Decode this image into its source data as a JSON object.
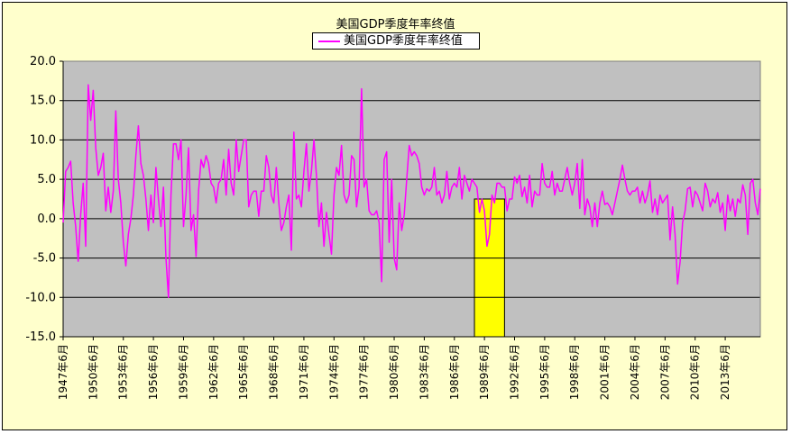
{
  "chart_data": {
    "type": "line",
    "title": "美国GDP季度年率终值",
    "legend": {
      "position": "top",
      "entries": [
        "美国GDP季度年率终值"
      ]
    },
    "series": [
      {
        "name": "美国GDP季度年率终值",
        "color": "#ff00ff",
        "start": [
          1947,
          2
        ],
        "values": [
          -0.5,
          6.0,
          6.5,
          7.3,
          2.0,
          -1.0,
          -5.4,
          0.5,
          4.5,
          -3.5,
          17.0,
          12.5,
          16.3,
          9.0,
          5.5,
          6.5,
          8.3,
          1.0,
          4.0,
          0.8,
          3.5,
          13.7,
          5.0,
          2.0,
          -3.0,
          -6.0,
          -2.0,
          0.0,
          3.0,
          8.0,
          11.8,
          7.0,
          5.5,
          2.5,
          -1.5,
          3.0,
          -0.5,
          6.5,
          2.5,
          -1.0,
          4.0,
          -5.0,
          -10.0,
          3.0,
          9.5,
          9.5,
          7.5,
          10.0,
          -1.0,
          3.0,
          9.0,
          -1.5,
          0.5,
          -4.8,
          3.5,
          7.5,
          6.5,
          8.0,
          7.0,
          4.5,
          4.0,
          2.0,
          4.5,
          5.0,
          7.5,
          3.0,
          8.8,
          4.5,
          3.0,
          10.0,
          6.0,
          8.0,
          10.0,
          10.0,
          1.5,
          3.0,
          3.5,
          3.5,
          0.3,
          3.5,
          3.5,
          8.0,
          6.5,
          3.0,
          2.0,
          6.5,
          2.0,
          -1.5,
          -0.5,
          1.5,
          3.0,
          -4.0,
          11.0,
          2.5,
          3.0,
          1.5,
          6.0,
          9.5,
          3.5,
          6.0,
          10.0,
          5.5,
          -1.0,
          2.0,
          -3.5,
          0.8,
          -2.0,
          -4.5,
          3.0,
          6.5,
          5.5,
          9.3,
          3.0,
          2.0,
          3.0,
          8.0,
          7.5,
          1.5,
          4.0,
          16.5,
          4.0,
          5.0,
          1.0,
          0.5,
          0.5,
          1.0,
          -0.5,
          -8.0,
          7.5,
          8.5,
          -3.0,
          5.0,
          -5.0,
          -6.5,
          2.0,
          -1.5,
          0.5,
          5.0,
          9.3,
          8.0,
          8.5,
          8.0,
          7.0,
          4.0,
          3.0,
          3.8,
          3.5,
          4.0,
          6.5,
          3.0,
          3.5,
          2.0,
          3.0,
          6.0,
          2.5,
          4.0,
          4.5,
          4.0,
          6.5,
          2.5,
          5.5,
          4.5,
          3.5,
          5.0,
          4.5,
          4.0,
          0.8,
          2.5,
          1.0,
          -3.5,
          -2.0,
          3.0,
          2.0,
          4.5,
          4.5,
          4.0,
          4.0,
          1.0,
          2.5,
          2.5,
          5.3,
          4.5,
          5.5,
          2.8,
          4.0,
          2.0,
          5.5,
          1.5,
          3.5,
          3.0,
          3.0,
          7.0,
          4.5,
          4.0,
          4.0,
          6.0,
          3.0,
          4.5,
          3.5,
          3.5,
          5.0,
          6.5,
          4.5,
          3.0,
          4.5,
          7.0,
          1.3,
          7.5,
          0.5,
          2.5,
          1.5,
          -1.0,
          2.0,
          -1.0,
          2.0,
          3.5,
          1.8,
          2.0,
          1.5,
          0.5,
          2.0,
          3.5,
          5.0,
          6.8,
          5.0,
          3.5,
          3.0,
          3.5,
          3.5,
          4.0,
          2.0,
          3.5,
          2.0,
          3.0,
          4.8,
          0.8,
          2.5,
          0.5,
          3.0,
          2.0,
          2.5,
          3.0,
          -2.7,
          1.5,
          -2.0,
          -8.3,
          -5.5,
          -0.5,
          1.0,
          3.8,
          4.0,
          1.5,
          3.5,
          3.0,
          2.0,
          1.0,
          4.5,
          3.5,
          1.5,
          2.5,
          2.0,
          3.3,
          0.8,
          2.0,
          -1.5,
          3.0,
          1.0,
          2.5,
          0.3,
          2.5,
          2.0,
          4.3,
          3.0,
          -2.0,
          4.5,
          5.0,
          2.0,
          0.5,
          3.8
        ]
      }
    ],
    "x_ticks": [
      "1947年6月",
      "1950年6月",
      "1953年6月",
      "1956年6月",
      "1959年6月",
      "1962年6月",
      "1965年6月",
      "1968年6月",
      "1971年6月",
      "1974年6月",
      "1977年6月",
      "1980年6月",
      "1983年6月",
      "1986年6月",
      "1989年6月",
      "1992年6月",
      "1995年6月",
      "1998年6月",
      "2001年6月",
      "2004年6月",
      "2007年6月",
      "2010年6月",
      "2013年6月"
    ],
    "y_ticks": [
      "20.0",
      "15.0",
      "10.0",
      "5.0",
      "0.0",
      "-5.0",
      "-10.0",
      "-15.0"
    ],
    "ylim": [
      -15,
      20
    ],
    "grid": {
      "horizontal": true,
      "vertical": false
    },
    "highlight": {
      "from": [
        1988,
        2
      ],
      "to": [
        1991,
        2
      ],
      "color": "#ffff00"
    },
    "colors": {
      "frame": "#ffffcc",
      "plot": "#c0c0c0",
      "line": "#ff00ff"
    }
  }
}
